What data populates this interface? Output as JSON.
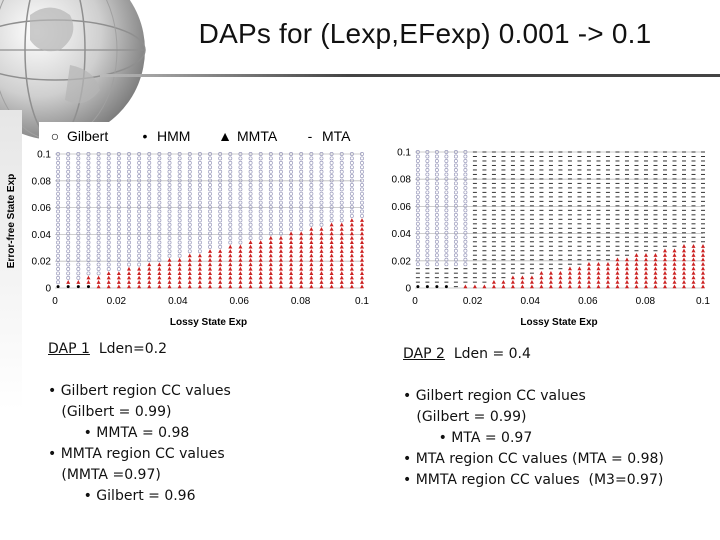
{
  "slide": {
    "title": "DAPs for (Lexp,EFexp) 0.001 -> 0.1"
  },
  "colors": {
    "gilbert": "#9999bb",
    "hmm": "#000000",
    "mmta": "#cc2222",
    "mta": "#333333",
    "title_rule": "#444444"
  },
  "chart_data": [
    {
      "type": "scatter",
      "title": "",
      "xlabel": "Lossy State Exp",
      "ylabel": "Error-free State Exp",
      "xlim": [
        0,
        0.1
      ],
      "ylim": [
        0,
        0.1
      ],
      "xticks": [
        "0",
        "0.02",
        "0.04",
        "0.06",
        "0.08",
        "0.1"
      ],
      "yticks": [
        "0",
        "0.02",
        "0.04",
        "0.06",
        "0.08",
        "0.1"
      ],
      "grid": "horizontal",
      "legend": {
        "position": "top",
        "entries": [
          {
            "marker": "○",
            "name": "Gilbert"
          },
          {
            "marker": "•",
            "name": "HMM"
          },
          {
            "marker": "▲",
            "name": "MMTA"
          },
          {
            "marker": "-",
            "name": "MTA"
          }
        ]
      },
      "grid_step": 0.0033,
      "regions": {
        "gilbert": "y > 0.5*x + 0.003",
        "mmta": "y <= 0.5*x + 0.003",
        "hmm": "x < 0.012 and y < 0.003"
      }
    },
    {
      "type": "scatter",
      "title": "",
      "xlabel": "Lossy State Exp",
      "ylabel": "",
      "xlim": [
        0,
        0.1
      ],
      "ylim": [
        0,
        0.1
      ],
      "xticks": [
        "0",
        "0.02",
        "0.04",
        "0.06",
        "0.08",
        "0.1"
      ],
      "yticks": [
        "0",
        "0.02",
        "0.04",
        "0.06",
        "0.08",
        "0.1"
      ],
      "grid": "horizontal",
      "grid_step": 0.0033,
      "regions": {
        "gilbert": "x < 0.02 and y > 0.015",
        "mmta": "y <= 0.4*x - 0.006",
        "mta": "otherwise",
        "hmm": "x < 0.012 and y < 0.003"
      }
    }
  ],
  "dap1": {
    "label_main": "DAP 1",
    "label_rest": "  Lden=0.2",
    "lines": [
      "• Gilbert region CC values",
      "   (Gilbert = 0.99)",
      "        • MMTA = 0.98",
      "• MMTA region CC values",
      "   (MMTA =0.97)",
      "        • Gilbert = 0.96"
    ]
  },
  "dap2": {
    "label_main": "DAP 2",
    "label_rest": "  Lden = 0.4",
    "lines": [
      "• Gilbert region CC values",
      "   (Gilbert = 0.99)",
      "        • MTA = 0.97",
      "• MTA region CC values (MTA = 0.98)",
      "• MMTA region CC values  (M3=0.97)"
    ]
  }
}
